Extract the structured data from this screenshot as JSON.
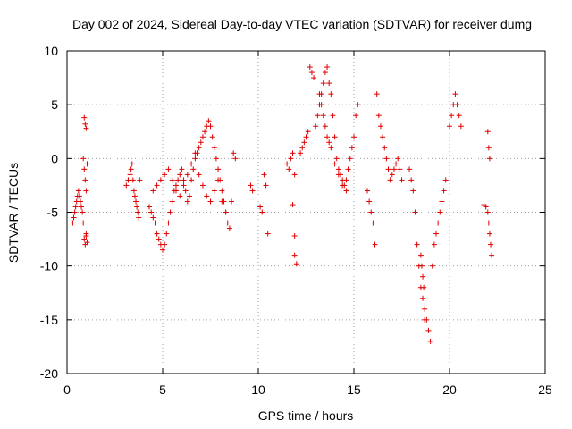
{
  "chart_data": {
    "type": "scatter",
    "title": "Day 002 of 2024, Sidereal Day-to-day VTEC variation (SDTVAR) for receiver dumg",
    "xlabel": "GPS time / hours",
    "ylabel": "SDTVAR / TECUs",
    "xlim": [
      0,
      25
    ],
    "ylim": [
      -20,
      10
    ],
    "xticks": [
      0,
      5,
      10,
      15,
      20,
      25
    ],
    "yticks": [
      10,
      5,
      0,
      -5,
      -10,
      -15,
      -20
    ],
    "xtick_labels": [
      "0",
      "5",
      "10",
      "15",
      "20",
      "25"
    ],
    "ytick_labels": [
      "10",
      "5",
      "0",
      "-5",
      "-10",
      "-15",
      "-20"
    ],
    "grid": true,
    "marker": "+",
    "color": "#e00000",
    "series": [
      {
        "name": "SDTVAR",
        "x": [
          0.3,
          0.35,
          0.4,
          0.45,
          0.5,
          0.55,
          0.6,
          0.65,
          0.7,
          0.75,
          0.8,
          0.85,
          0.9,
          0.95,
          1.0,
          1.05,
          0.85,
          0.9,
          0.95,
          1.0,
          0.9,
          0.95,
          1.0,
          1.0,
          1.05,
          3.1,
          3.2,
          3.3,
          3.35,
          3.4,
          3.45,
          3.5,
          3.55,
          3.6,
          3.65,
          3.7,
          3.75,
          3.8,
          4.3,
          4.4,
          4.5,
          4.6,
          4.7,
          4.8,
          4.9,
          5.0,
          5.1,
          5.2,
          5.3,
          5.4,
          5.5,
          5.6,
          5.7,
          5.8,
          5.9,
          6.0,
          6.1,
          6.2,
          6.3,
          6.4,
          6.5,
          6.6,
          6.7,
          6.8,
          6.9,
          7.0,
          7.1,
          7.2,
          7.3,
          7.4,
          7.5,
          7.6,
          7.7,
          7.8,
          7.9,
          8.0,
          8.1,
          8.2,
          8.3,
          8.4,
          8.5,
          8.6,
          8.7,
          8.8,
          4.5,
          4.7,
          4.9,
          5.1,
          5.3,
          5.5,
          5.7,
          5.9,
          6.1,
          6.3,
          6.5,
          6.7,
          6.9,
          7.1,
          7.3,
          7.5,
          7.7,
          7.9,
          8.1,
          8.3,
          9.6,
          9.7,
          10.1,
          10.2,
          10.3,
          10.4,
          10.5,
          11.5,
          11.6,
          11.7,
          11.8,
          11.9,
          11.8,
          11.9,
          11.9,
          12.0,
          12.2,
          12.3,
          12.4,
          12.5,
          12.6,
          12.7,
          12.8,
          12.9,
          13.0,
          13.1,
          13.2,
          13.3,
          13.4,
          13.5,
          13.6,
          13.7,
          13.8,
          13.9,
          14.0,
          14.1,
          14.2,
          14.3,
          14.4,
          14.5,
          14.6,
          14.7,
          14.8,
          14.9,
          15.0,
          15.1,
          15.2,
          13.2,
          13.3,
          13.4,
          13.5,
          13.6,
          13.7,
          13.8,
          14.0,
          14.2,
          14.4,
          14.6,
          15.7,
          15.8,
          15.9,
          16.0,
          16.1,
          16.2,
          16.3,
          16.4,
          16.5,
          16.6,
          16.7,
          16.8,
          16.9,
          17.0,
          17.1,
          17.2,
          17.3,
          17.4,
          17.5,
          17.9,
          18.0,
          18.1,
          18.2,
          18.3,
          18.4,
          18.5,
          18.6,
          18.7,
          18.8,
          18.9,
          19.0,
          19.1,
          19.2,
          19.3,
          19.4,
          19.5,
          19.6,
          19.7,
          19.8,
          18.5,
          18.55,
          18.6,
          18.65,
          18.7,
          20.0,
          20.1,
          20.2,
          20.3,
          20.4,
          20.5,
          20.6,
          21.8,
          21.9,
          22.0,
          22.05,
          22.1,
          22.15,
          22.2,
          22.0,
          22.05,
          22.1
        ],
        "y": [
          -6,
          -5.5,
          -5,
          -4.5,
          -4,
          -3.5,
          -3,
          -3.5,
          -4,
          -4.5,
          -5,
          -6,
          -7.5,
          -8,
          -7,
          -0.5,
          0,
          -1,
          -2,
          -3,
          3.8,
          3.2,
          2.8,
          -7.2,
          -7.8,
          -2.5,
          -2,
          -1.5,
          -1,
          -0.5,
          -2,
          -3,
          -3.5,
          -4,
          -4.5,
          -5,
          -5.5,
          -2,
          -4.5,
          -5,
          -5.5,
          -6,
          -7,
          -7.5,
          -8,
          -8.5,
          -8,
          -7,
          -6,
          -5,
          -4,
          -3,
          -2.5,
          -2,
          -1.5,
          -1,
          -2,
          -3,
          -4,
          -3.5,
          -2,
          -1,
          0,
          0.5,
          1,
          1.5,
          2,
          2.5,
          3,
          3.5,
          3,
          2,
          1,
          0,
          -1,
          -2,
          -3,
          -4,
          -5,
          -6,
          -6.5,
          -4,
          0.5,
          0,
          -3,
          -2.5,
          -2,
          -1.5,
          -1,
          -2,
          -3,
          -3.5,
          -2.5,
          -1.5,
          -0.5,
          0.5,
          -1.5,
          -2.5,
          -3.5,
          -4,
          -3,
          -2,
          -4,
          -5,
          -2.5,
          -3,
          -4.5,
          -5,
          -1.5,
          -2.5,
          -7,
          -0.5,
          -1,
          0,
          0.5,
          -1.5,
          -4.3,
          -7.2,
          -9,
          -9.8,
          0.5,
          1,
          1.5,
          2,
          2.5,
          8.5,
          8,
          7.5,
          3,
          4,
          5,
          6,
          7,
          8,
          8.5,
          7,
          6,
          4,
          2,
          0,
          -1,
          -1.5,
          -2,
          -2.5,
          -2,
          -1,
          0,
          1,
          2,
          4,
          5,
          6,
          5,
          4,
          3,
          2,
          1.5,
          1,
          -0.5,
          -1.5,
          -2.5,
          -3,
          -3,
          -4,
          -5,
          -6,
          -8,
          6,
          4,
          3,
          2,
          1,
          0,
          -1,
          -2,
          -1.5,
          -1,
          -0.5,
          0,
          -1,
          -2,
          -1,
          -2,
          -3,
          -5,
          -8,
          -10,
          -12,
          -13,
          -14,
          -15,
          -16,
          -17,
          -10,
          -8,
          -7,
          -6,
          -5,
          -4,
          -3,
          -2,
          -9,
          -10,
          -11,
          -12,
          -15,
          3,
          4,
          5,
          6,
          5,
          4,
          3,
          -4.3,
          -4.5,
          -5,
          -6,
          -7,
          -8,
          -9,
          2.5,
          1,
          0
        ]
      }
    ]
  }
}
